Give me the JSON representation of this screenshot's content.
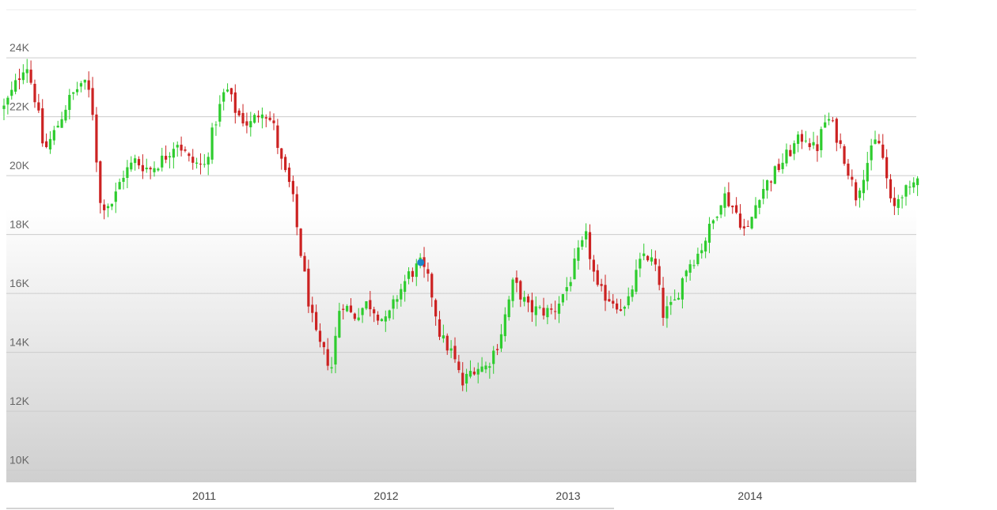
{
  "chart_data": {
    "type": "candlestick",
    "y_ticks": [
      {
        "value": 24000,
        "label": "24K"
      },
      {
        "value": 22000,
        "label": "22K"
      },
      {
        "value": 20000,
        "label": "20K"
      },
      {
        "value": 18000,
        "label": "18K"
      },
      {
        "value": 16000,
        "label": "16K"
      },
      {
        "value": 14000,
        "label": "14K"
      },
      {
        "value": 12000,
        "label": "12K"
      },
      {
        "value": 10000,
        "label": "10K"
      }
    ],
    "x_ticks": [
      {
        "value": 2011,
        "label": "2011"
      },
      {
        "value": 2012,
        "label": "2012"
      },
      {
        "value": 2013,
        "label": "2013"
      },
      {
        "value": 2014,
        "label": "2014"
      }
    ],
    "xlim": [
      2009.9,
      2014.92
    ],
    "ylim": [
      9600,
      26000
    ],
    "grid": true,
    "up_color": "#2ecc2e",
    "down_color": "#cc2222",
    "marker_color": "#1a86c8",
    "highlight": {
      "x": 2012.19,
      "y": 17050
    },
    "close_path": [
      [
        2009.9,
        22300
      ],
      [
        2009.95,
        22900
      ],
      [
        2010.02,
        23900
      ],
      [
        2010.08,
        22400
      ],
      [
        2010.12,
        20800
      ],
      [
        2010.18,
        21500
      ],
      [
        2010.25,
        22500
      ],
      [
        2010.33,
        23200
      ],
      [
        2010.38,
        22700
      ],
      [
        2010.43,
        19000
      ],
      [
        2010.5,
        19100
      ],
      [
        2010.55,
        20000
      ],
      [
        2010.62,
        20500
      ],
      [
        2010.7,
        20200
      ],
      [
        2010.78,
        20600
      ],
      [
        2010.85,
        21200
      ],
      [
        2010.92,
        20500
      ],
      [
        2011.0,
        20300
      ],
      [
        2011.06,
        21800
      ],
      [
        2011.12,
        23000
      ],
      [
        2011.18,
        22100
      ],
      [
        2011.25,
        21700
      ],
      [
        2011.32,
        22300
      ],
      [
        2011.38,
        21700
      ],
      [
        2011.43,
        20300
      ],
      [
        2011.48,
        19500
      ],
      [
        2011.52,
        17800
      ],
      [
        2011.58,
        15500
      ],
      [
        2011.62,
        14400
      ],
      [
        2011.7,
        13500
      ],
      [
        2011.75,
        15800
      ],
      [
        2011.82,
        15200
      ],
      [
        2011.9,
        15700
      ],
      [
        2012.0,
        15000
      ],
      [
        2012.06,
        15900
      ],
      [
        2012.12,
        16600
      ],
      [
        2012.19,
        17000
      ],
      [
        2012.24,
        16300
      ],
      [
        2012.3,
        14500
      ],
      [
        2012.36,
        14000
      ],
      [
        2012.42,
        12900
      ],
      [
        2012.48,
        13500
      ],
      [
        2012.55,
        13500
      ],
      [
        2012.62,
        14400
      ],
      [
        2012.7,
        16400
      ],
      [
        2012.78,
        15500
      ],
      [
        2012.85,
        15400
      ],
      [
        2012.92,
        15400
      ],
      [
        2013.0,
        16300
      ],
      [
        2013.06,
        17400
      ],
      [
        2013.1,
        17900
      ],
      [
        2013.16,
        16100
      ],
      [
        2013.24,
        15800
      ],
      [
        2013.32,
        15400
      ],
      [
        2013.36,
        16400
      ],
      [
        2013.42,
        17400
      ],
      [
        2013.48,
        16900
      ],
      [
        2013.52,
        15300
      ],
      [
        2013.58,
        15600
      ],
      [
        2013.65,
        16900
      ],
      [
        2013.72,
        17400
      ],
      [
        2013.8,
        18500
      ],
      [
        2013.85,
        19400
      ],
      [
        2013.92,
        18800
      ],
      [
        2013.98,
        18000
      ],
      [
        2014.05,
        19400
      ],
      [
        2014.1,
        19800
      ],
      [
        2014.17,
        20400
      ],
      [
        2014.24,
        21000
      ],
      [
        2014.3,
        21400
      ],
      [
        2014.36,
        20800
      ],
      [
        2014.42,
        22000
      ],
      [
        2014.46,
        21600
      ],
      [
        2014.52,
        20600
      ],
      [
        2014.58,
        19300
      ],
      [
        2014.64,
        20400
      ],
      [
        2014.7,
        21300
      ],
      [
        2014.74,
        20300
      ],
      [
        2014.78,
        18700
      ],
      [
        2014.83,
        19500
      ],
      [
        2014.88,
        19400
      ],
      [
        2014.92,
        20100
      ]
    ]
  }
}
